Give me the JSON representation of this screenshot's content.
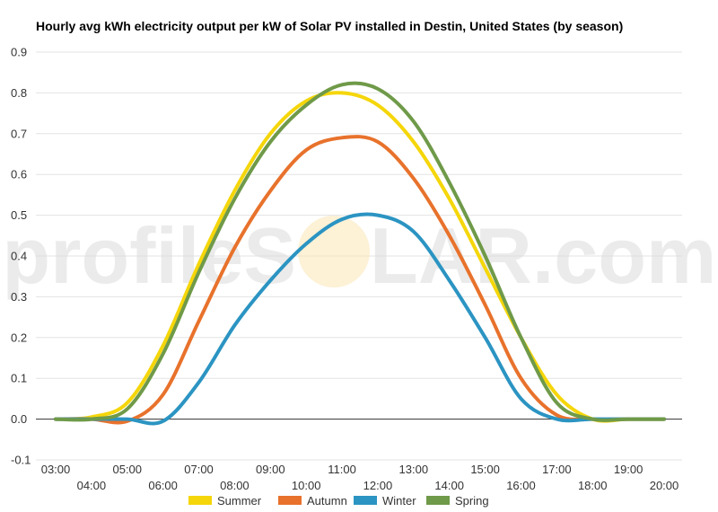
{
  "chart_data": {
    "type": "line",
    "title": "Hourly avg kWh electricity output per kW of Solar PV installed in Destin, United States (by season)",
    "xlabel": "",
    "ylabel": "",
    "watermark": {
      "left": "profileS",
      "right": "LAR.com"
    },
    "x": [
      "03:00",
      "04:00",
      "05:00",
      "06:00",
      "07:00",
      "08:00",
      "09:00",
      "10:00",
      "11:00",
      "12:00",
      "13:00",
      "14:00",
      "15:00",
      "16:00",
      "17:00",
      "18:00",
      "19:00",
      "20:00"
    ],
    "x_tick_labels_upper": [
      "03:00",
      "05:00",
      "07:00",
      "09:00",
      "11:00",
      "13:00",
      "15:00",
      "17:00",
      "19:00"
    ],
    "x_tick_labels_lower": [
      "04:00",
      "06:00",
      "08:00",
      "10:00",
      "12:00",
      "14:00",
      "16:00",
      "18:00",
      "20:00"
    ],
    "ylim": [
      -0.1,
      0.9
    ],
    "y_ticks": [
      -0.1,
      0.0,
      0.1,
      0.2,
      0.3,
      0.4,
      0.5,
      0.6,
      0.7,
      0.8,
      0.9
    ],
    "y_tick_labels": [
      "-0.1",
      "0.0",
      "0.1",
      "0.2",
      "0.3",
      "0.4",
      "0.5",
      "0.6",
      "0.7",
      "0.8",
      "0.9"
    ],
    "grid": true,
    "legend_position": "bottom",
    "series": [
      {
        "name": "Summer",
        "color": "#f5d60a",
        "values": [
          0.0,
          0.005,
          0.04,
          0.18,
          0.38,
          0.56,
          0.7,
          0.78,
          0.8,
          0.77,
          0.68,
          0.54,
          0.37,
          0.2,
          0.06,
          0.0,
          0.0,
          0.0
        ]
      },
      {
        "name": "Autumn",
        "color": "#e8722c",
        "values": [
          0.0,
          0.0,
          -0.005,
          0.06,
          0.24,
          0.42,
          0.56,
          0.66,
          0.69,
          0.68,
          0.59,
          0.45,
          0.28,
          0.1,
          0.01,
          0.0,
          0.0,
          0.0
        ]
      },
      {
        "name": "Winter",
        "color": "#2b94c2",
        "values": [
          0.0,
          0.0,
          0.0,
          -0.005,
          0.09,
          0.23,
          0.34,
          0.43,
          0.49,
          0.5,
          0.46,
          0.34,
          0.2,
          0.05,
          0.0,
          0.0,
          0.0,
          0.0
        ]
      },
      {
        "name": "Spring",
        "color": "#6f9a49",
        "values": [
          0.0,
          0.0,
          0.025,
          0.16,
          0.36,
          0.54,
          0.68,
          0.77,
          0.82,
          0.81,
          0.73,
          0.58,
          0.4,
          0.2,
          0.04,
          0.0,
          0.0,
          0.0
        ]
      }
    ]
  }
}
